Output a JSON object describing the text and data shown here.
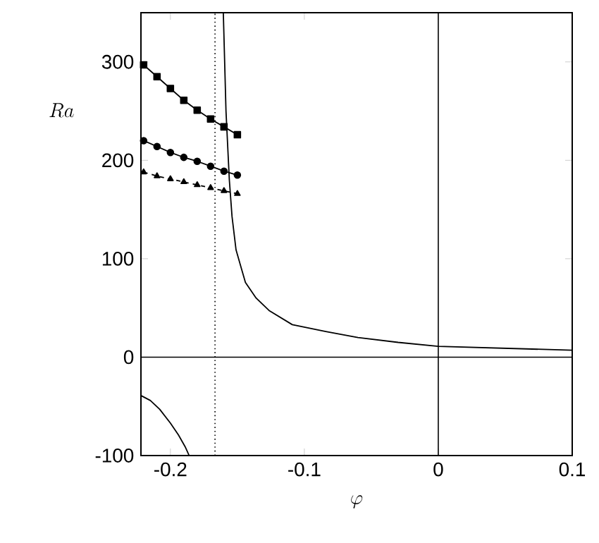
{
  "chart_data": {
    "type": "line",
    "xlabel": "\\varphi",
    "ylabel": "Ra",
    "xlim": [
      -0.222,
      0.1
    ],
    "ylim": [
      -100,
      350
    ],
    "xticks": [
      -0.2,
      -0.1,
      0,
      0.1
    ],
    "yticks": [
      -100,
      0,
      100,
      200,
      300
    ],
    "series": [
      {
        "color": "#000000",
        "marker": "square",
        "line_style": "solid",
        "x": [
          -0.22,
          -0.21,
          -0.2,
          -0.19,
          -0.18,
          -0.17,
          -0.16,
          -0.15
        ],
        "values": [
          297,
          285,
          273,
          261,
          251,
          242,
          234,
          226
        ]
      },
      {
        "color": "#000000",
        "marker": "circle",
        "line_style": "solid",
        "x": [
          -0.22,
          -0.21,
          -0.2,
          -0.19,
          -0.18,
          -0.17,
          -0.16,
          -0.15
        ],
        "values": [
          220,
          214,
          208,
          203,
          199,
          194,
          189,
          185
        ]
      },
      {
        "color": "#000000",
        "marker": "triangle",
        "line_style": "dashed",
        "x": [
          -0.22,
          -0.21,
          -0.2,
          -0.19,
          -0.18,
          -0.17,
          -0.16,
          -0.15
        ],
        "values": [
          188,
          184,
          181,
          178,
          175,
          172,
          169,
          166
        ]
      },
      {
        "color": "#000000",
        "marker": "none",
        "line_style": "solid",
        "x": [
          -0.1605,
          -0.1585,
          -0.156,
          -0.154,
          -0.151,
          -0.147,
          -0.144,
          -0.136,
          -0.126,
          -0.109,
          -0.084,
          -0.06,
          -0.03,
          0,
          0.05,
          0.1
        ],
        "values": [
          350,
          250,
          180,
          143,
          109,
          90,
          76,
          60,
          47,
          33,
          26,
          20,
          15,
          11,
          9,
          7
        ]
      },
      {
        "color": "#000000",
        "marker": "none",
        "line_style": "solid",
        "x": [
          -0.222,
          -0.215,
          -0.208,
          -0.2,
          -0.194,
          -0.189,
          -0.186
        ],
        "values": [
          -39,
          -44,
          -53,
          -67,
          -79,
          -91,
          -100
        ]
      }
    ],
    "ref_lines": [
      {
        "axis": "x",
        "value": -0.1667,
        "line_style": "dotted",
        "color": "#000000"
      },
      {
        "axis": "x",
        "value": 0,
        "line_style": "solid",
        "color": "#000000"
      },
      {
        "axis": "y",
        "value": 0,
        "line_style": "solid",
        "color": "#000000"
      }
    ]
  }
}
